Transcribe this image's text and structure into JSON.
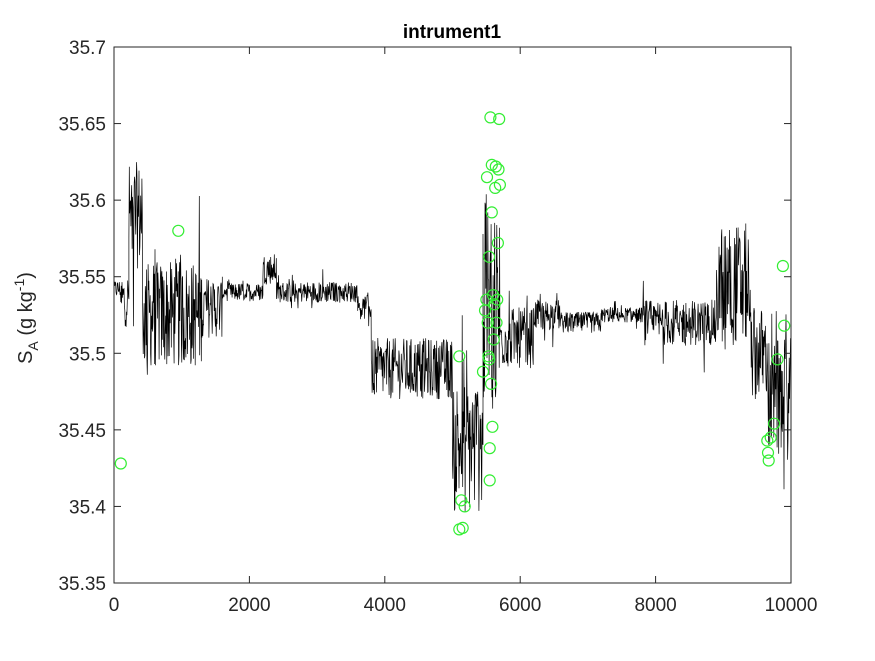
{
  "chart_data": {
    "type": "line",
    "title": "intrument1",
    "xlabel": "",
    "ylabel": {
      "main": "S",
      "sub": "A",
      "units_open": " (g kg",
      "sup": "-1",
      "units_close": ")"
    },
    "xlim": [
      0,
      10000
    ],
    "ylim": [
      35.35,
      35.7
    ],
    "x_ticks": [
      0,
      2000,
      4000,
      6000,
      8000,
      10000
    ],
    "x_tick_labels": [
      "0",
      "2000",
      "4000",
      "6000",
      "8000",
      "10000"
    ],
    "y_ticks": [
      35.35,
      35.4,
      35.45,
      35.5,
      35.55,
      35.6,
      35.65,
      35.7
    ],
    "y_tick_labels": [
      "35.35",
      "35.4",
      "35.45",
      "35.5",
      "35.55",
      "35.6",
      "35.65",
      "35.7"
    ],
    "grid": false,
    "colors": {
      "line": "#000000",
      "markers": "#33ee33",
      "axes": "#262626"
    },
    "series": [
      {
        "style": "line",
        "segments": [
          {
            "x0": 0,
            "x1": 100,
            "center": 35.542,
            "noise": 0.006
          },
          {
            "x0": 100,
            "x1": 220,
            "center": 35.535,
            "noise": 0.018
          },
          {
            "x0": 220,
            "x1": 420,
            "center": 35.59,
            "noise": 0.035
          },
          {
            "x0": 420,
            "x1": 1300,
            "center": 35.525,
            "noise": 0.035
          },
          {
            "x0": 1300,
            "x1": 1600,
            "center": 35.53,
            "noise": 0.02
          },
          {
            "x0": 1600,
            "x1": 2200,
            "center": 35.54,
            "noise": 0.006
          },
          {
            "x0": 2200,
            "x1": 2400,
            "center": 35.555,
            "noise": 0.01
          },
          {
            "x0": 2400,
            "x1": 3600,
            "center": 35.54,
            "noise": 0.007
          },
          {
            "x0": 3600,
            "x1": 3800,
            "center": 35.53,
            "noise": 0.008
          },
          {
            "x0": 3800,
            "x1": 5000,
            "center": 35.49,
            "noise": 0.02
          },
          {
            "x0": 5000,
            "x1": 5450,
            "center": 35.44,
            "noise": 0.045
          },
          {
            "x0": 5450,
            "x1": 5700,
            "center": 35.53,
            "noise": 0.07
          },
          {
            "x0": 5700,
            "x1": 6200,
            "center": 35.51,
            "noise": 0.02
          },
          {
            "x0": 6200,
            "x1": 6600,
            "center": 35.525,
            "noise": 0.01
          },
          {
            "x0": 6600,
            "x1": 7200,
            "center": 35.52,
            "noise": 0.007
          },
          {
            "x0": 7200,
            "x1": 7800,
            "center": 35.525,
            "noise": 0.005
          },
          {
            "x0": 7800,
            "x1": 8900,
            "center": 35.52,
            "noise": 0.015
          },
          {
            "x0": 8900,
            "x1": 9400,
            "center": 35.545,
            "noise": 0.04
          },
          {
            "x0": 9400,
            "x1": 9650,
            "center": 35.5,
            "noise": 0.03
          },
          {
            "x0": 9650,
            "x1": 10000,
            "center": 35.47,
            "noise": 0.04
          }
        ]
      },
      {
        "style": "markers",
        "points": [
          [
            100,
            35.428
          ],
          [
            950,
            35.58
          ],
          [
            5100,
            35.498
          ],
          [
            5100,
            35.385
          ],
          [
            5130,
            35.404
          ],
          [
            5150,
            35.386
          ],
          [
            5180,
            35.4
          ],
          [
            5450,
            35.488
          ],
          [
            5480,
            35.528
          ],
          [
            5500,
            35.535
          ],
          [
            5510,
            35.615
          ],
          [
            5520,
            35.52
          ],
          [
            5530,
            35.498
          ],
          [
            5540,
            35.496
          ],
          [
            5540,
            35.563
          ],
          [
            5550,
            35.438
          ],
          [
            5550,
            35.417
          ],
          [
            5560,
            35.654
          ],
          [
            5570,
            35.48
          ],
          [
            5580,
            35.592
          ],
          [
            5580,
            35.623
          ],
          [
            5590,
            35.452
          ],
          [
            5600,
            35.538
          ],
          [
            5610,
            35.509
          ],
          [
            5620,
            35.532
          ],
          [
            5630,
            35.608
          ],
          [
            5640,
            35.622
          ],
          [
            5650,
            35.52
          ],
          [
            5660,
            35.535
          ],
          [
            5670,
            35.572
          ],
          [
            5680,
            35.62
          ],
          [
            5690,
            35.653
          ],
          [
            5700,
            35.61
          ],
          [
            9650,
            35.443
          ],
          [
            9660,
            35.435
          ],
          [
            9670,
            35.43
          ],
          [
            9700,
            35.445
          ],
          [
            9750,
            35.454
          ],
          [
            9800,
            35.496
          ],
          [
            9880,
            35.557
          ],
          [
            9900,
            35.518
          ]
        ]
      }
    ]
  }
}
